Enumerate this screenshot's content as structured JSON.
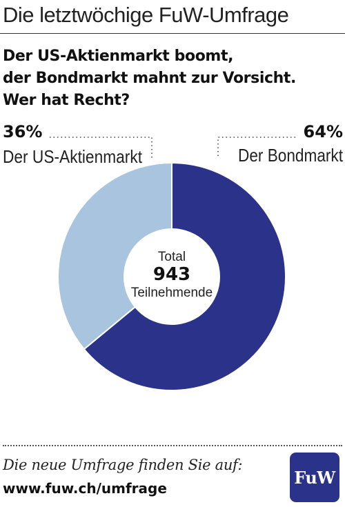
{
  "header": {
    "title": "Die letztwöchige FuW-Umfrage"
  },
  "question": {
    "lines": [
      "Der US-Aktienmarkt boomt,",
      "der Bondmarkt mahnt zur Vorsicht.",
      "Wer hat Recht?"
    ]
  },
  "chart_data": {
    "type": "pie",
    "style": "donut",
    "title": "Der US-Aktienmarkt boomt, der Bondmarkt mahnt zur Vorsicht. Wer hat Recht?",
    "slices": [
      {
        "label": "Der US-Aktienmarkt",
        "value": 36,
        "display": "36%",
        "color": "#a9c4de"
      },
      {
        "label": "Der Bondmarkt",
        "value": 64,
        "display": "64%",
        "color": "#2b3289"
      }
    ],
    "center": {
      "top": "Total",
      "value": "943",
      "bottom": "Teilnehmende"
    }
  },
  "footer": {
    "text": "Die neue Umfrage finden Sie auf:",
    "link": "www.fuw.ch/umfrage"
  },
  "logo": {
    "text": "FuW",
    "color": "#2b3289"
  }
}
